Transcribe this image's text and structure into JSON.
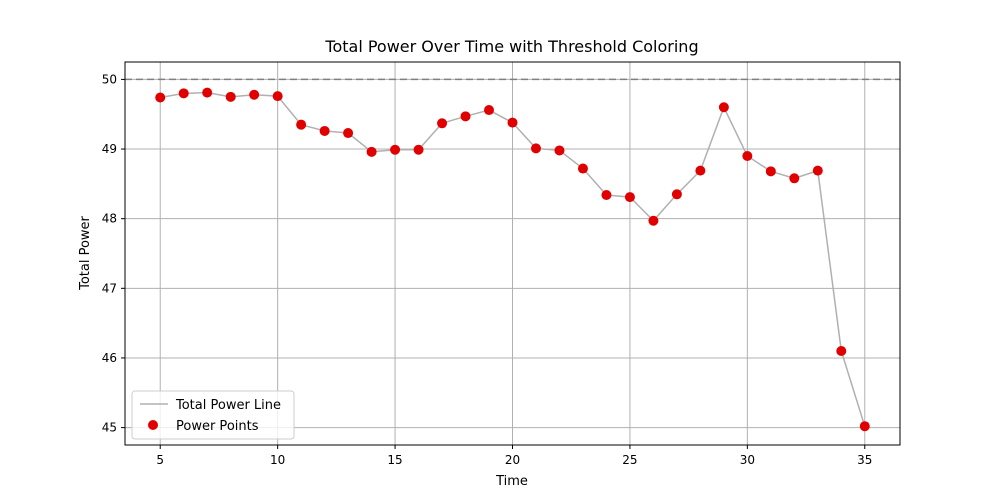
{
  "chart_data": {
    "type": "line",
    "title": "Total Power Over Time with Threshold Coloring",
    "xlabel": "Time",
    "ylabel": "Total Power",
    "xlim": [
      3.5,
      36.5
    ],
    "ylim": [
      44.75,
      50.25
    ],
    "xticks": [
      5,
      10,
      15,
      20,
      25,
      30,
      35
    ],
    "yticks": [
      45,
      46,
      47,
      48,
      49,
      50
    ],
    "grid": true,
    "threshold": 50,
    "legend_position": "lower-left",
    "x": [
      5,
      6,
      7,
      8,
      9,
      10,
      11,
      12,
      13,
      14,
      15,
      16,
      17,
      18,
      19,
      20,
      21,
      22,
      23,
      24,
      25,
      26,
      27,
      28,
      29,
      30,
      31,
      32,
      33,
      34,
      35
    ],
    "series": [
      {
        "name": "Total Power Line",
        "kind": "line",
        "color": "#b0b0b0",
        "values": [
          49.74,
          49.8,
          49.81,
          49.75,
          49.78,
          49.76,
          49.35,
          49.26,
          49.23,
          48.96,
          48.99,
          48.99,
          49.37,
          49.47,
          49.56,
          49.38,
          49.01,
          48.98,
          48.72,
          48.34,
          48.31,
          47.97,
          48.35,
          48.69,
          49.6,
          48.9,
          48.68,
          48.58,
          48.69,
          46.1,
          45.02
        ]
      },
      {
        "name": "Power Points",
        "kind": "scatter",
        "color": "#e00000",
        "values": [
          49.74,
          49.8,
          49.81,
          49.75,
          49.78,
          49.76,
          49.35,
          49.26,
          49.23,
          48.96,
          48.99,
          48.99,
          49.37,
          49.47,
          49.56,
          49.38,
          49.01,
          48.98,
          48.72,
          48.34,
          48.31,
          47.97,
          48.35,
          48.69,
          49.6,
          48.9,
          48.68,
          48.58,
          48.69,
          46.1,
          45.02
        ]
      }
    ],
    "colors": {
      "grid": "#b0b0b0",
      "threshold_line": "#808080",
      "axes": "#000000"
    }
  }
}
